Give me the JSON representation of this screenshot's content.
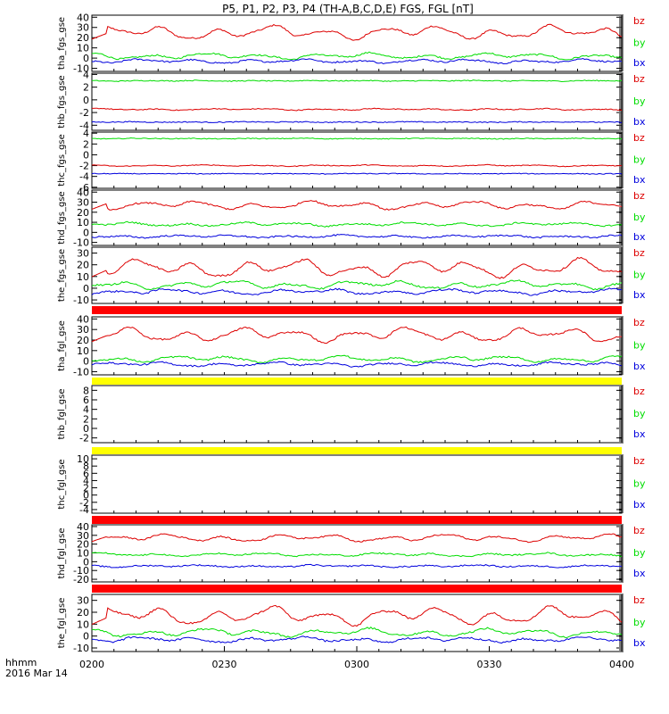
{
  "chart_data": {
    "type": "line",
    "title": "P5, P1, P2, P3, P4 (TH-A,B,C,D,E) FGS, FGL [nT]",
    "x_tick_labels": [
      "0200",
      "0230",
      "0300",
      "0330",
      "0400"
    ],
    "x_label_line1": "hhmm",
    "x_label_line2": "2016 Mar 14",
    "legend": [
      "bz",
      "by",
      "bx"
    ],
    "colors": {
      "bz": "#dd0000",
      "by": "#00dd00",
      "bx": "#0000dd"
    },
    "panels": [
      {
        "ylabel": "tha_fgs_gse",
        "yticks": [
          "40",
          "30",
          "20",
          "10",
          "0",
          "-10"
        ],
        "ylim": [
          -13,
          42
        ],
        "bz": 25,
        "by": 2,
        "bx": -3,
        "amp": 8,
        "noise": 1.5,
        "quality_bar": null
      },
      {
        "ylabel": "thb_fgs_gse",
        "yticks": [
          "4",
          "2",
          "0",
          "-2",
          "-4"
        ],
        "ylim": [
          -4.8,
          4.2
        ],
        "bz": -1.5,
        "by": 3,
        "bx": -3.5,
        "amp": 0.15,
        "noise": 0.15,
        "quality_bar": null
      },
      {
        "ylabel": "thc_fgs_gse",
        "yticks": [
          "4",
          "2",
          "0",
          "-2",
          "-4",
          "-6"
        ],
        "ylim": [
          -6.2,
          4.2
        ],
        "bz": -2,
        "by": 3,
        "bx": -3.5,
        "amp": 0.15,
        "noise": 0.15,
        "quality_bar": null
      },
      {
        "ylabel": "thd_fgs_gse",
        "yticks": [
          "40",
          "30",
          "20",
          "10",
          "0",
          "-10"
        ],
        "ylim": [
          -13,
          42
        ],
        "bz": 27,
        "by": 8,
        "bx": -4,
        "amp": 5,
        "noise": 1.5,
        "quality_bar": null
      },
      {
        "ylabel": "the_fgs_gse",
        "yticks": [
          "30",
          "20",
          "10",
          "0",
          "-10"
        ],
        "ylim": [
          -13,
          35
        ],
        "bz": 17,
        "by": 3,
        "bx": -3,
        "amp": 9,
        "noise": 1.5,
        "quality_bar": null
      },
      {
        "ylabel": "tha_fgl_gse",
        "yticks": [
          "40",
          "30",
          "20",
          "10",
          "0",
          "-10"
        ],
        "ylim": [
          -13,
          42
        ],
        "bz": 25,
        "by": 2,
        "bx": -3,
        "amp": 8,
        "noise": 1.5,
        "quality_bar": "#ff0000"
      },
      {
        "ylabel": "thb_fgl_gse",
        "yticks": [
          "8",
          "6",
          "4",
          "2",
          "0",
          "-2"
        ],
        "ylim": [
          -3,
          9
        ],
        "bz": null,
        "by": null,
        "bx": null,
        "amp": 0,
        "noise": 0,
        "quality_bar": "#ffff00"
      },
      {
        "ylabel": "thc_fgl_gse",
        "yticks": [
          "10",
          "8",
          "6",
          "4",
          "2",
          "0",
          "-2",
          "-4"
        ],
        "ylim": [
          -5,
          11
        ],
        "bz": null,
        "by": null,
        "bx": null,
        "amp": 0,
        "noise": 0,
        "quality_bar": "#ffff00"
      },
      {
        "ylabel": "thd_fgl_gse",
        "yticks": [
          "40",
          "30",
          "20",
          "10",
          "0",
          "-10",
          "-20"
        ],
        "ylim": [
          -23,
          42
        ],
        "bz": 27,
        "by": 8,
        "bx": -5,
        "amp": 5,
        "noise": 1.5,
        "quality_bar": "#ff0000"
      },
      {
        "ylabel": "the_fgl_gse",
        "yticks": [
          "30",
          "20",
          "10",
          "0",
          "-10"
        ],
        "ylim": [
          -13,
          35
        ],
        "bz": 17,
        "by": 3,
        "bx": -3,
        "amp": 9,
        "noise": 1.5,
        "quality_bar": "#ff0000"
      }
    ]
  }
}
